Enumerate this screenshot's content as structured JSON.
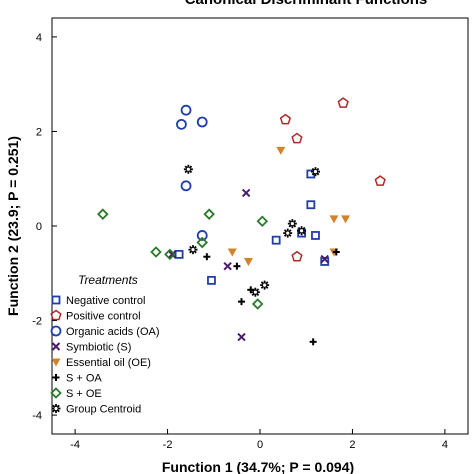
{
  "chart_data": {
    "type": "scatter",
    "title": "Canonical Discriminant Functions",
    "xlabel": "Function 1 (34.7%; P = 0.094)",
    "ylabel": "Function 2 (23.9; P = 0.251)",
    "xlim": [
      -4.5,
      4.5
    ],
    "ylim": [
      -4.4,
      4.4
    ],
    "xticks": [
      "-4",
      "-2",
      "0",
      "2",
      "4"
    ],
    "yticks": [
      "4",
      "2",
      "0",
      "-2",
      "-4"
    ],
    "grid": false,
    "legend": {
      "title": "Treatments",
      "placement": "bottom-left"
    },
    "series": [
      {
        "name": "Negative control",
        "marker": "square-open",
        "color": "#1f3ea8",
        "points": [
          [
            1.1,
            1.1
          ],
          [
            1.1,
            0.45
          ],
          [
            1.2,
            -0.2
          ],
          [
            0.9,
            -0.15
          ],
          [
            0.35,
            -0.3
          ],
          [
            1.4,
            -0.75
          ],
          [
            -1.05,
            -1.15
          ],
          [
            -1.75,
            -0.6
          ]
        ]
      },
      {
        "name": "Positive control",
        "marker": "pentagon-open",
        "color": "#b02a2a",
        "points": [
          [
            1.8,
            2.6
          ],
          [
            0.55,
            2.25
          ],
          [
            0.8,
            1.85
          ],
          [
            2.6,
            0.95
          ],
          [
            0.8,
            -0.65
          ]
        ]
      },
      {
        "name": "Organic acids (OA)",
        "marker": "circle-open",
        "color": "#1f3ea8",
        "points": [
          [
            -1.6,
            2.45
          ],
          [
            -1.7,
            2.15
          ],
          [
            -1.25,
            2.2
          ],
          [
            -1.6,
            0.85
          ],
          [
            -1.25,
            -0.2
          ]
        ]
      },
      {
        "name": "Symbiotic (S)",
        "marker": "x",
        "color": "#4b1a6e",
        "points": [
          [
            -0.3,
            0.7
          ],
          [
            -1.9,
            -0.6
          ],
          [
            -0.7,
            -0.85
          ],
          [
            1.4,
            -0.7
          ],
          [
            -0.4,
            -2.35
          ]
        ]
      },
      {
        "name": "Essential oil (OE)",
        "marker": "triangle-down",
        "color": "#d4822a",
        "points": [
          [
            0.45,
            1.6
          ],
          [
            1.6,
            0.15
          ],
          [
            1.85,
            0.15
          ],
          [
            1.6,
            -0.55
          ],
          [
            -0.6,
            -0.55
          ],
          [
            -0.25,
            -0.75
          ]
        ]
      },
      {
        "name": "S + OA",
        "marker": "plus",
        "color": "#000000",
        "points": [
          [
            -1.15,
            -0.65
          ],
          [
            -0.5,
            -0.85
          ],
          [
            -0.2,
            -1.35
          ],
          [
            -0.4,
            -1.6
          ],
          [
            1.65,
            -0.55
          ],
          [
            1.15,
            -2.45
          ]
        ]
      },
      {
        "name": "S + OE",
        "marker": "diamond-open",
        "color": "#2a7a2a",
        "points": [
          [
            -3.4,
            0.25
          ],
          [
            -2.25,
            -0.55
          ],
          [
            -1.95,
            -0.6
          ],
          [
            -1.1,
            0.25
          ],
          [
            0.05,
            0.1
          ],
          [
            -0.05,
            -1.65
          ],
          [
            -1.25,
            -0.35
          ]
        ]
      },
      {
        "name": "Group Centroid",
        "marker": "centroid",
        "color": "#000000",
        "points": [
          [
            -1.55,
            1.2
          ],
          [
            1.2,
            1.15
          ],
          [
            0.9,
            -0.1
          ],
          [
            0.7,
            0.05
          ],
          [
            0.6,
            -0.15
          ],
          [
            0.1,
            -1.25
          ],
          [
            -0.1,
            -1.4
          ],
          [
            -1.45,
            -0.5
          ]
        ]
      }
    ]
  }
}
